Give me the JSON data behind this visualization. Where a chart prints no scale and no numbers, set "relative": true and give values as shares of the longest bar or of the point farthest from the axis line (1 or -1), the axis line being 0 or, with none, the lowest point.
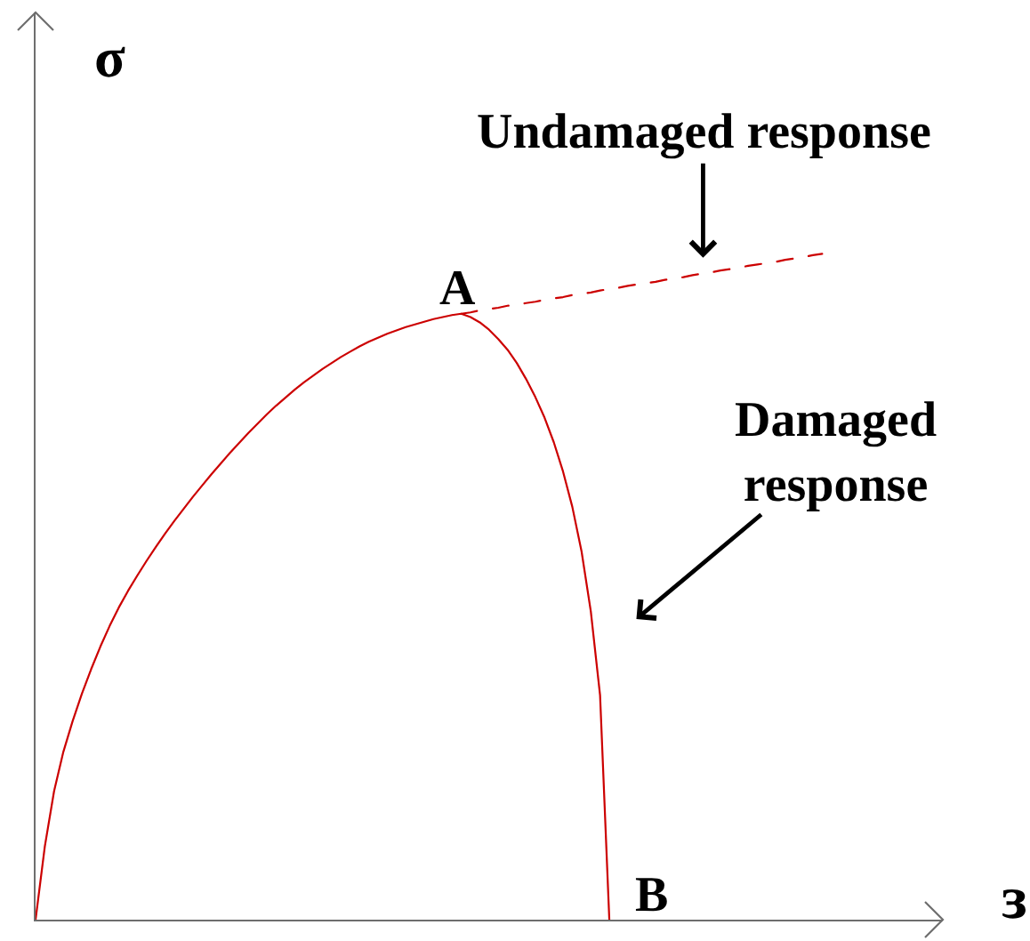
{
  "chart_data": {
    "type": "line",
    "relative": true,
    "xlabel": "ɜ",
    "ylabel": "σ",
    "marker": "none",
    "categories": [
      null,
      null,
      null,
      null,
      null,
      null,
      null,
      null,
      null,
      null,
      null,
      null,
      null,
      null,
      null,
      null,
      null,
      null,
      null,
      null,
      null,
      null,
      null,
      null,
      null,
      null,
      null,
      null,
      null,
      null,
      null,
      null,
      null,
      null,
      null,
      null,
      null,
      null,
      null,
      null,
      null,
      null,
      null,
      null,
      null,
      null,
      null,
      null,
      null,
      null,
      null,
      null,
      null,
      null,
      null,
      null,
      null,
      null,
      null,
      null,
      null,
      null,
      null,
      null,
      null,
      null,
      null,
      null,
      null,
      null,
      null,
      null,
      null,
      null,
      null,
      null,
      null,
      null,
      null,
      null,
      null,
      null,
      null,
      null,
      null,
      null
    ],
    "series": [
      {
        "name": "Damaged response",
        "color": "#cc0000",
        "line_style": "solid",
        "values": [
          0,
          0.11,
          0.193,
          0.252,
          0.298,
          0.339,
          0.376,
          0.41,
          0.441,
          0.469,
          0.494,
          0.517,
          0.539,
          0.56,
          0.58,
          0.599,
          0.617,
          0.635,
          0.652,
          0.669,
          0.685,
          0.701,
          0.716,
          0.731,
          0.745,
          0.759,
          0.772,
          0.784,
          0.796,
          0.807,
          0.817,
          0.827,
          0.836,
          0.845,
          0.853,
          0.861,
          0.868,
          0.874,
          0.88,
          0.885,
          0.89,
          0.894,
          0.898,
          0.902,
          0.905,
          0.908,
          0.91,
          0.905,
          0.897,
          0.886,
          0.872,
          0.856,
          0.836,
          0.812,
          0.785,
          0.754,
          0.717,
          0.673,
          0.62,
          0.553,
          0.463,
          0.337,
          0,
          null,
          null,
          null,
          null,
          null,
          null,
          null,
          null,
          null,
          null,
          null,
          null,
          null,
          null,
          null,
          null,
          null,
          null,
          null,
          null,
          null,
          null,
          null
        ]
      },
      {
        "name": "Undamaged response",
        "color": "#cc0000",
        "line_style": "dashed",
        "values": [
          null,
          null,
          null,
          null,
          null,
          null,
          null,
          null,
          null,
          null,
          null,
          null,
          null,
          null,
          null,
          null,
          null,
          null,
          null,
          null,
          null,
          null,
          null,
          null,
          null,
          null,
          null,
          null,
          null,
          null,
          null,
          null,
          null,
          null,
          null,
          null,
          null,
          null,
          null,
          null,
          null,
          null,
          null,
          null,
          null,
          null,
          0.91,
          0.912,
          0.915,
          0.917,
          0.919,
          0.922,
          0.924,
          0.926,
          0.928,
          0.931,
          0.933,
          0.935,
          0.938,
          0.94,
          0.942,
          0.945,
          0.947,
          0.949,
          0.952,
          0.954,
          0.956,
          0.958,
          0.961,
          0.963,
          0.965,
          0.968,
          0.97,
          0.972,
          0.975,
          0.977,
          0.979,
          0.982,
          0.984,
          0.986,
          0.988,
          0.991,
          0.993,
          0.995,
          0.998,
          1
        ]
      }
    ],
    "annotations": [
      "A",
      "B"
    ]
  }
}
